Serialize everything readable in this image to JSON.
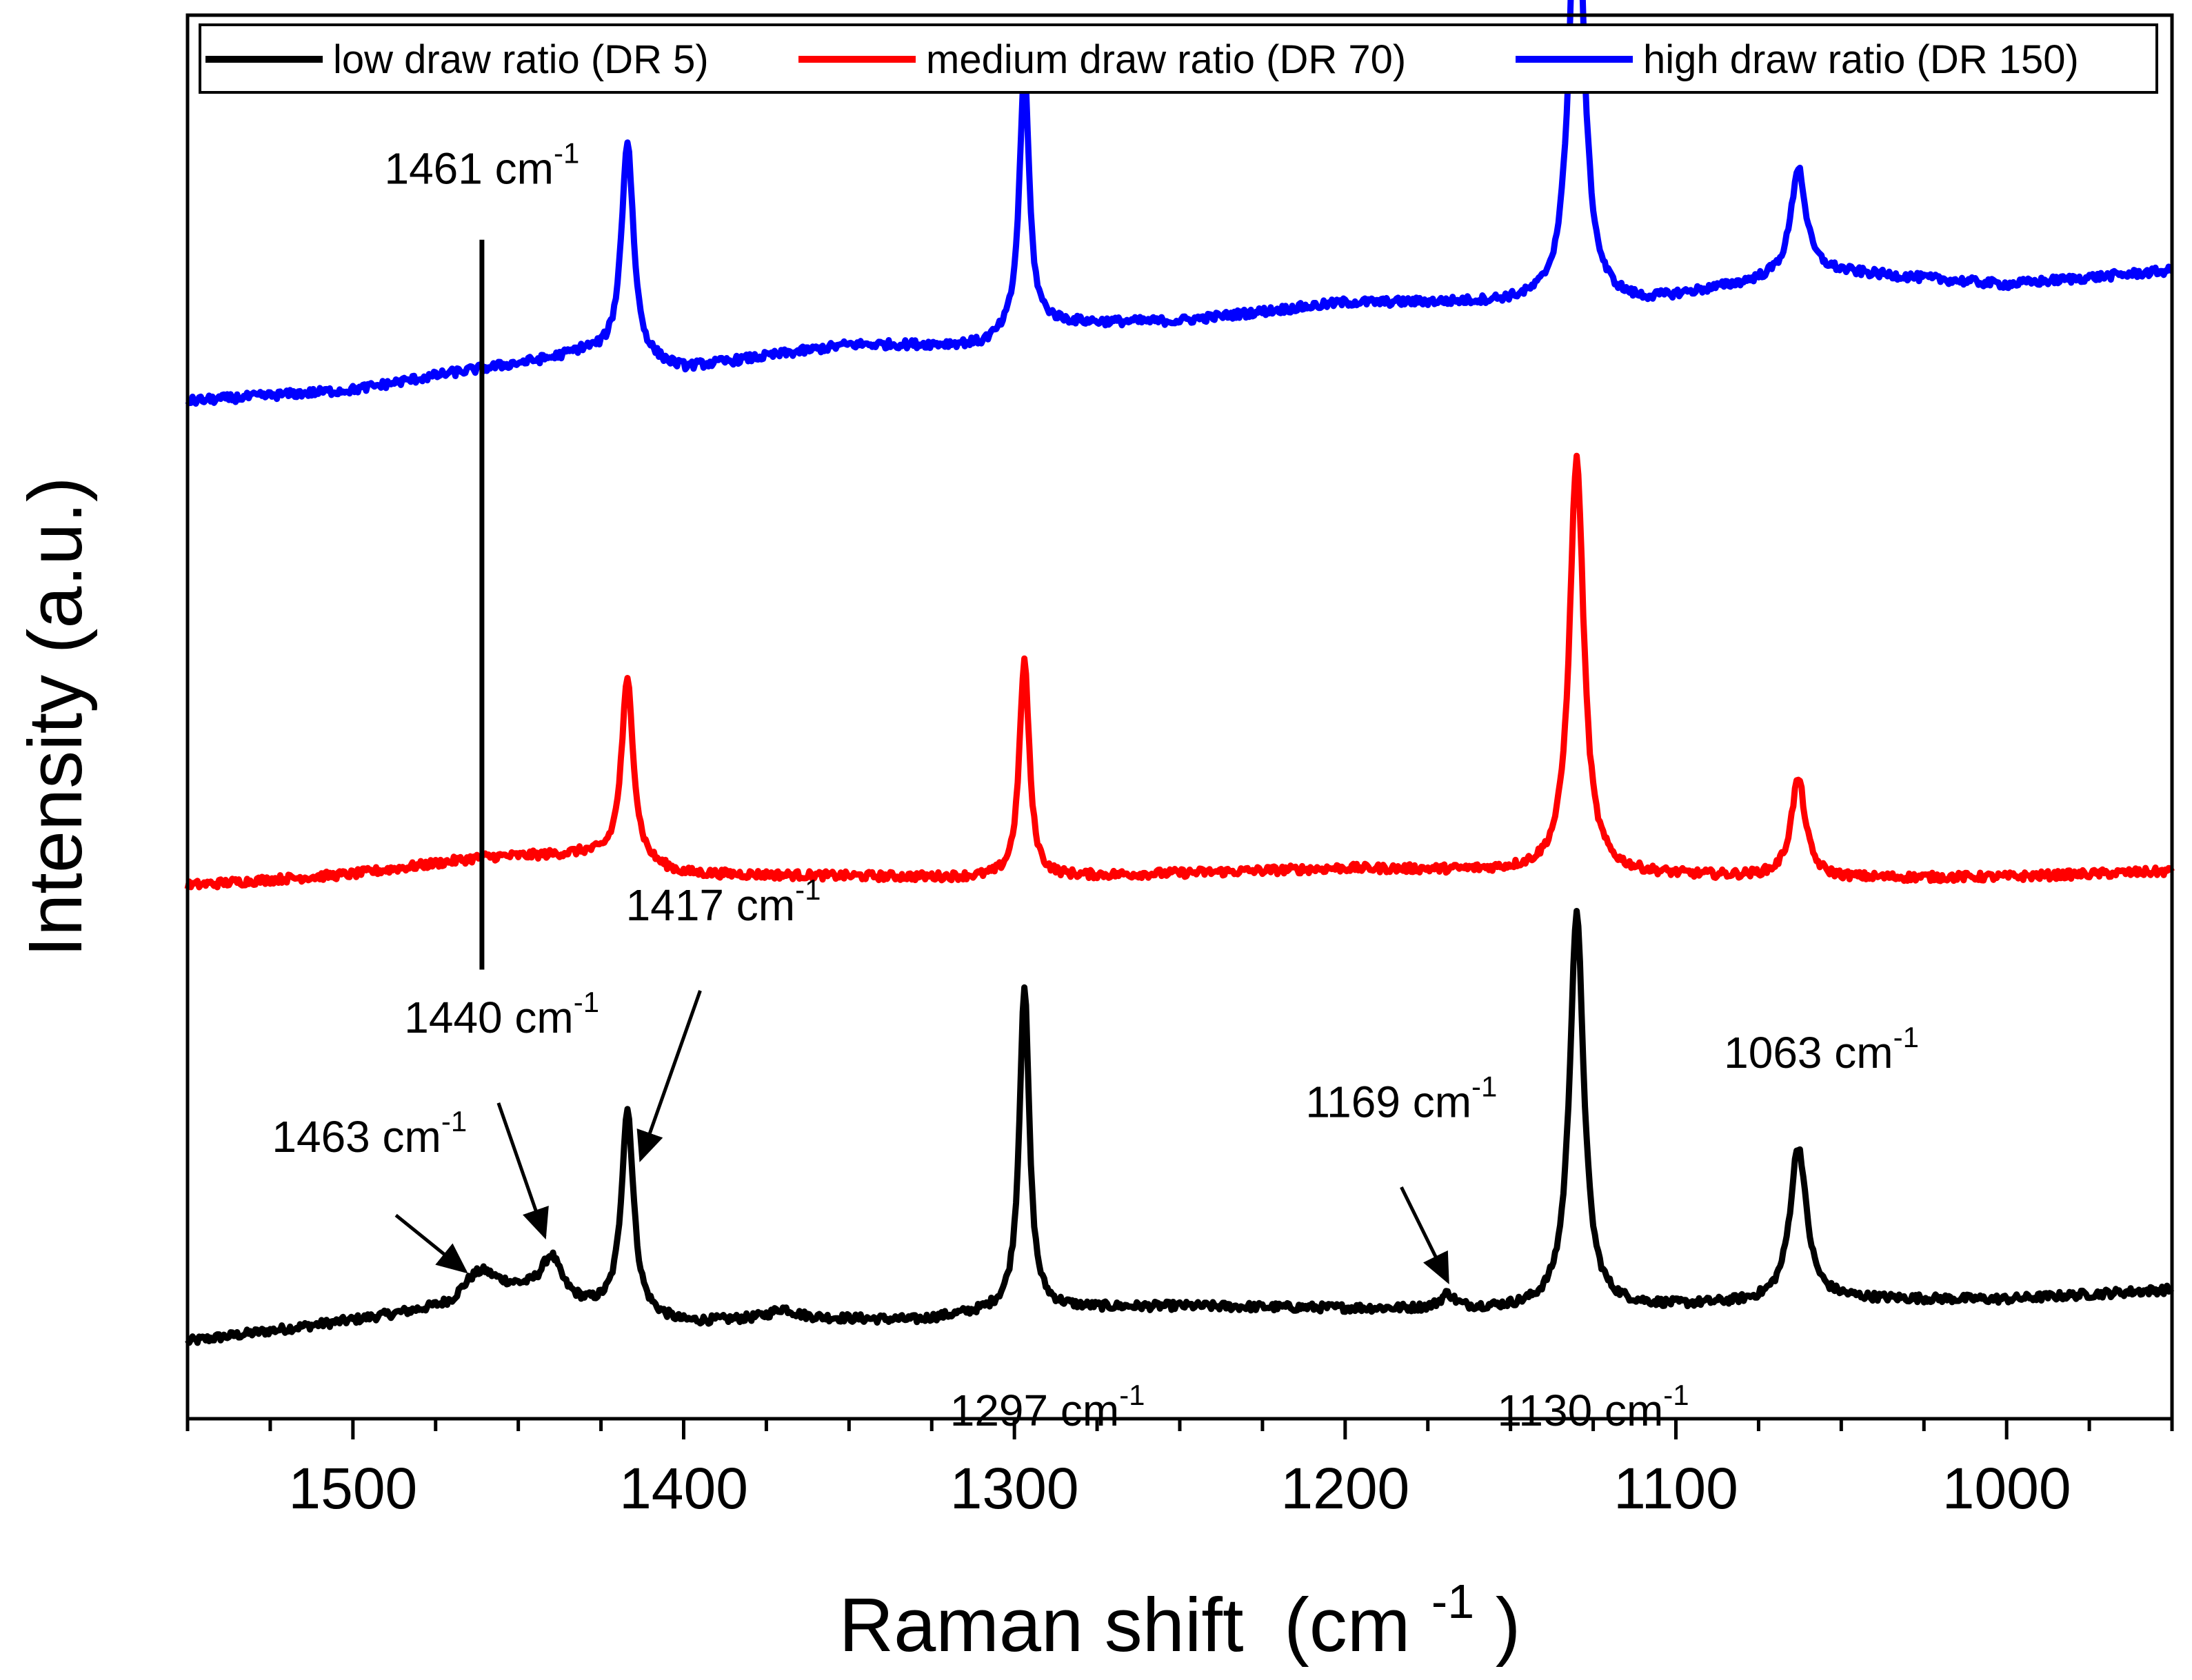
{
  "chart_data": {
    "type": "line",
    "title": "",
    "xlabel": "Raman shift",
    "xlabel_unit": "(cm",
    "xlabel_unit_sup": "-1",
    "xlabel_unit_close": ")",
    "ylabel": "Intensity (a.u.)",
    "xlim": [
      1550,
      950
    ],
    "x_reversed": true,
    "ylim": [
      0,
      10
    ],
    "x_ticks": [
      1500,
      1400,
      1300,
      1200,
      1100,
      1000
    ],
    "x_tick_labels": [
      "1500",
      "1400",
      "1300",
      "1200",
      "1100",
      "1000"
    ],
    "y_ticks_shown": false,
    "grid": false,
    "legend_position": "top",
    "series": [
      {
        "name": "low draw ratio (DR 5)",
        "color": "#000000",
        "baseline": [
          [
            1550,
            0.55
          ],
          [
            1500,
            0.7
          ],
          [
            1470,
            0.8
          ],
          [
            1460,
            0.95
          ],
          [
            1445,
            0.9
          ],
          [
            1430,
            0.8
          ],
          [
            1400,
            0.68
          ],
          [
            1370,
            0.72
          ],
          [
            1330,
            0.7
          ],
          [
            1300,
            0.78
          ],
          [
            1250,
            0.8
          ],
          [
            1180,
            0.78
          ],
          [
            1150,
            0.78
          ],
          [
            1100,
            0.8
          ],
          [
            1050,
            0.85
          ],
          [
            1000,
            0.85
          ],
          [
            950,
            0.92
          ]
        ],
        "peaks": [
          {
            "center": 1463,
            "height": 0.12,
            "width": 6
          },
          {
            "center": 1440,
            "height": 0.28,
            "width": 3.5
          },
          {
            "center": 1417,
            "height": 1.45,
            "width": 2.2
          },
          {
            "center": 1370,
            "height": 0.06,
            "width": 4
          },
          {
            "center": 1297,
            "height": 2.3,
            "width": 1.8
          },
          {
            "center": 1169,
            "height": 0.1,
            "width": 2.5
          },
          {
            "center": 1130,
            "height": 2.8,
            "width": 2.6
          },
          {
            "center": 1063,
            "height": 1.1,
            "width": 3.0
          }
        ],
        "noise": 0.03
      },
      {
        "name": "medium draw ratio (DR 70)",
        "color": "#ff0000",
        "baseline": [
          [
            1550,
            3.8
          ],
          [
            1500,
            3.88
          ],
          [
            1460,
            4.0
          ],
          [
            1430,
            4.02
          ],
          [
            1400,
            3.88
          ],
          [
            1300,
            3.85
          ],
          [
            1200,
            3.92
          ],
          [
            1150,
            3.9
          ],
          [
            1100,
            3.87
          ],
          [
            1050,
            3.85
          ],
          [
            1000,
            3.86
          ],
          [
            950,
            3.9
          ]
        ],
        "peaks": [
          {
            "center": 1417,
            "height": 1.3,
            "width": 2.2
          },
          {
            "center": 1297,
            "height": 1.55,
            "width": 1.8
          },
          {
            "center": 1130,
            "height": 2.95,
            "width": 2.6
          },
          {
            "center": 1063,
            "height": 0.7,
            "width": 2.6
          }
        ],
        "noise": 0.03
      },
      {
        "name": "high draw ratio (DR 150)",
        "color": "#0000ff",
        "baseline": [
          [
            1550,
            7.25
          ],
          [
            1500,
            7.33
          ],
          [
            1470,
            7.45
          ],
          [
            1440,
            7.55
          ],
          [
            1430,
            7.6
          ],
          [
            1400,
            7.48
          ],
          [
            1380,
            7.55
          ],
          [
            1350,
            7.65
          ],
          [
            1310,
            7.65
          ],
          [
            1290,
            7.8
          ],
          [
            1250,
            7.82
          ],
          [
            1200,
            7.95
          ],
          [
            1150,
            7.95
          ],
          [
            1110,
            7.95
          ],
          [
            1080,
            8.08
          ],
          [
            1060,
            8.18
          ],
          [
            1040,
            8.15
          ],
          [
            1000,
            8.08
          ],
          [
            950,
            8.18
          ]
        ],
        "peaks": [
          {
            "center": 1417,
            "height": 1.55,
            "width": 2.2
          },
          {
            "center": 1297,
            "height": 1.85,
            "width": 1.8
          },
          {
            "center": 1130,
            "height": 3.2,
            "width": 2.6
          },
          {
            "center": 1063,
            "height": 0.75,
            "width": 2.6
          }
        ],
        "noise": 0.03
      }
    ],
    "annotations": [
      {
        "label": "1461 cm",
        "sup": "-1",
        "x": 1461,
        "kind": "vline",
        "y_from": 3.2,
        "y_to": 8.4,
        "text_x": 1461,
        "text_y": 8.8,
        "anchor": "middle"
      },
      {
        "label": "1463 cm",
        "sup": "-1",
        "kind": "arrow",
        "text_x": 1495,
        "text_y": 1.9,
        "anchor": "middle",
        "arrow_from": [
          1487,
          1.45
        ],
        "arrow_to": [
          1466,
          1.05
        ]
      },
      {
        "label": "1440 cm",
        "sup": "-1",
        "kind": "arrow",
        "text_x": 1455,
        "text_y": 2.75,
        "anchor": "middle",
        "arrow_from": [
          1456,
          2.25
        ],
        "arrow_to": [
          1442,
          1.3
        ]
      },
      {
        "label": "1417 cm",
        "sup": "-1",
        "kind": "arrow",
        "text_x": 1388,
        "text_y": 3.55,
        "anchor": "middle",
        "arrow_from": [
          1395,
          3.05
        ],
        "arrow_to": [
          1413,
          1.85
        ]
      },
      {
        "label": "1297 cm",
        "sup": "-1",
        "kind": "text",
        "text_x": 1290,
        "text_y": -0.05,
        "anchor": "middle"
      },
      {
        "label": "1169 cm",
        "sup": "-1",
        "kind": "arrow",
        "text_x": 1183,
        "text_y": 2.15,
        "anchor": "middle",
        "arrow_from": [
          1183,
          1.65
        ],
        "arrow_to": [
          1169,
          0.98
        ]
      },
      {
        "label": "1130 cm",
        "sup": "-1",
        "kind": "text",
        "text_x": 1125,
        "text_y": -0.05,
        "anchor": "middle"
      },
      {
        "label": "1063 cm",
        "sup": "-1",
        "kind": "text",
        "text_x": 1056,
        "text_y": 2.5,
        "anchor": "middle"
      }
    ]
  }
}
